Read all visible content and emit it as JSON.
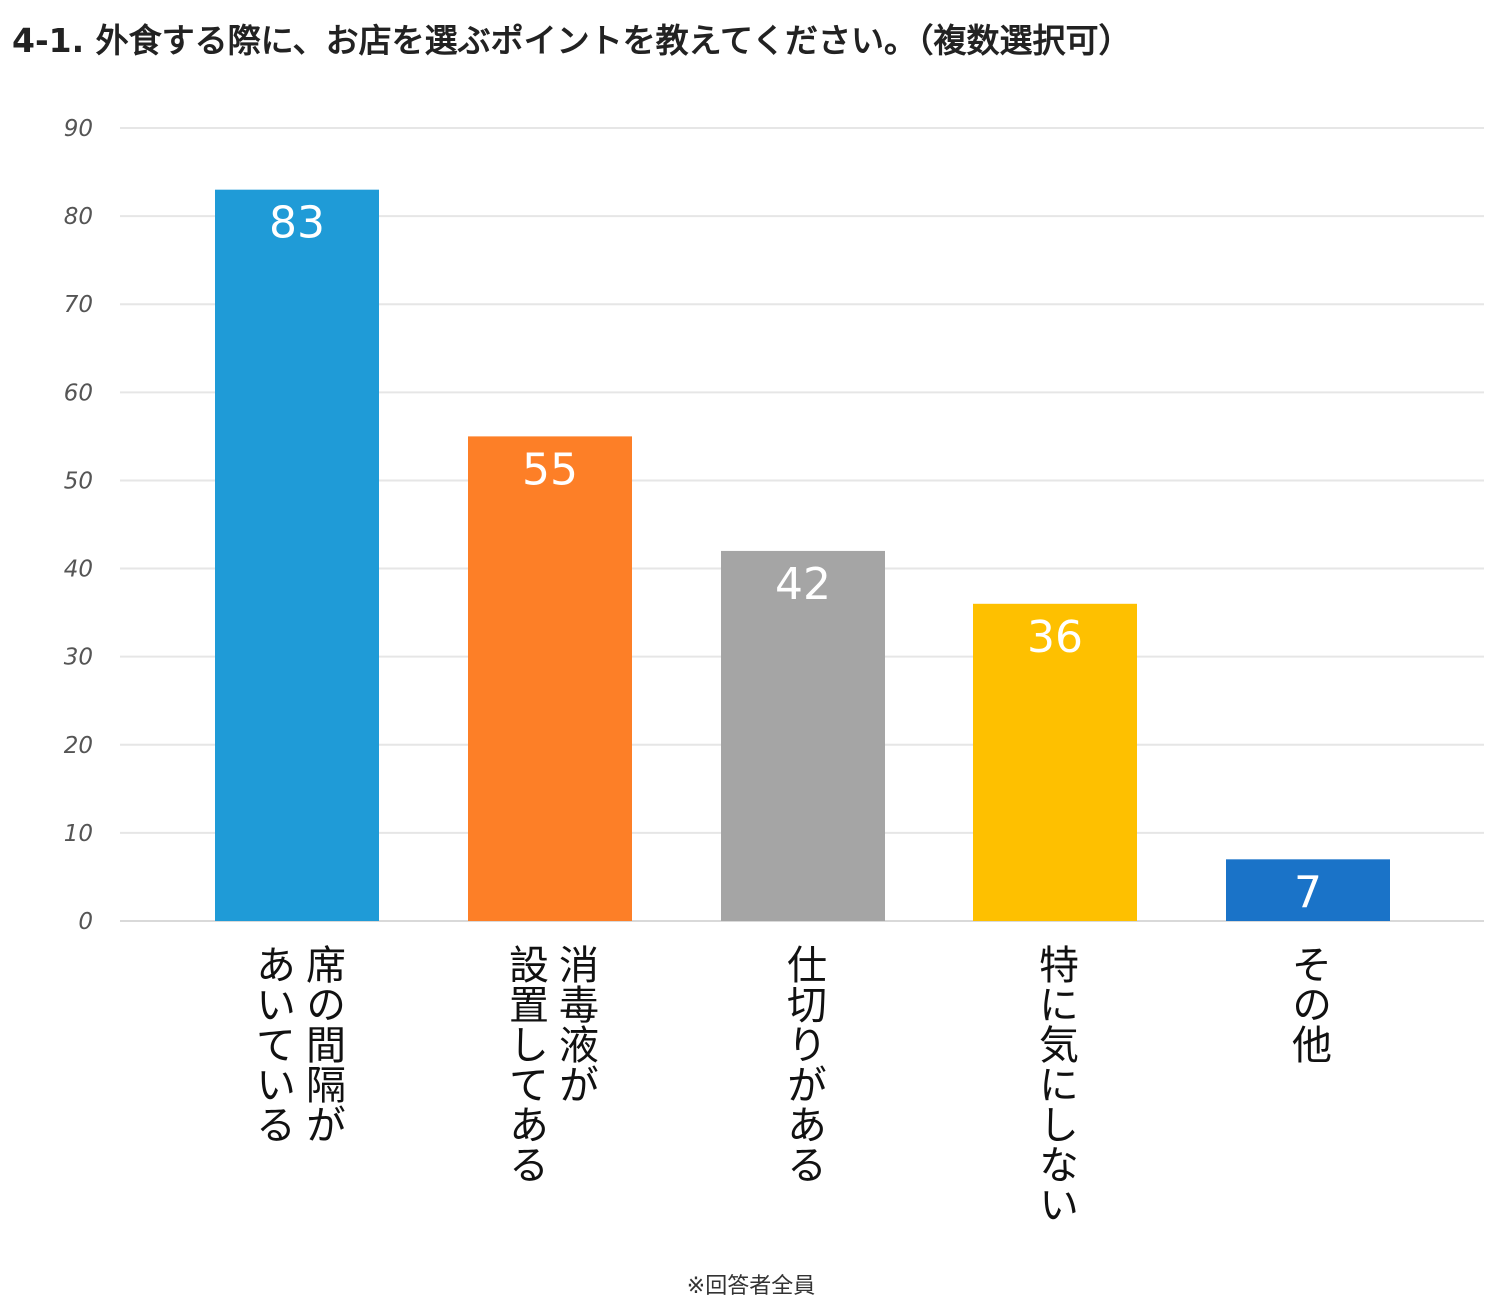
{
  "title": "4-1. 外食する際に、お店を選ぶポイントを教えてください。（複数選択可）",
  "footnote": "※回答者全員",
  "chart_data": {
    "type": "bar",
    "title": "4-1. 外食する際に、お店を選ぶポイントを教えてください。（複数選択可）",
    "xlabel": "",
    "ylabel": "",
    "ylim": [
      0,
      90
    ],
    "yticks": [
      0,
      10,
      20,
      30,
      40,
      50,
      60,
      70,
      80,
      90
    ],
    "grid": true,
    "categories": [
      {
        "id": "seat-spacing",
        "lines": [
          "席の間隔が",
          "あいている"
        ]
      },
      {
        "id": "sanitizer",
        "lines": [
          "消毒液が",
          "設置してある"
        ]
      },
      {
        "id": "partition",
        "lines": [
          "仕切りがある"
        ]
      },
      {
        "id": "no-concern",
        "lines": [
          "特に気にしない"
        ]
      },
      {
        "id": "other",
        "lines": [
          "その他"
        ]
      }
    ],
    "values": [
      83,
      55,
      42,
      36,
      7
    ],
    "colors": [
      "#1f9bd7",
      "#fd7f27",
      "#a5a5a5",
      "#fec000",
      "#1a73c8"
    ],
    "data_labels": [
      "83",
      "55",
      "42",
      "36",
      "7"
    ]
  }
}
